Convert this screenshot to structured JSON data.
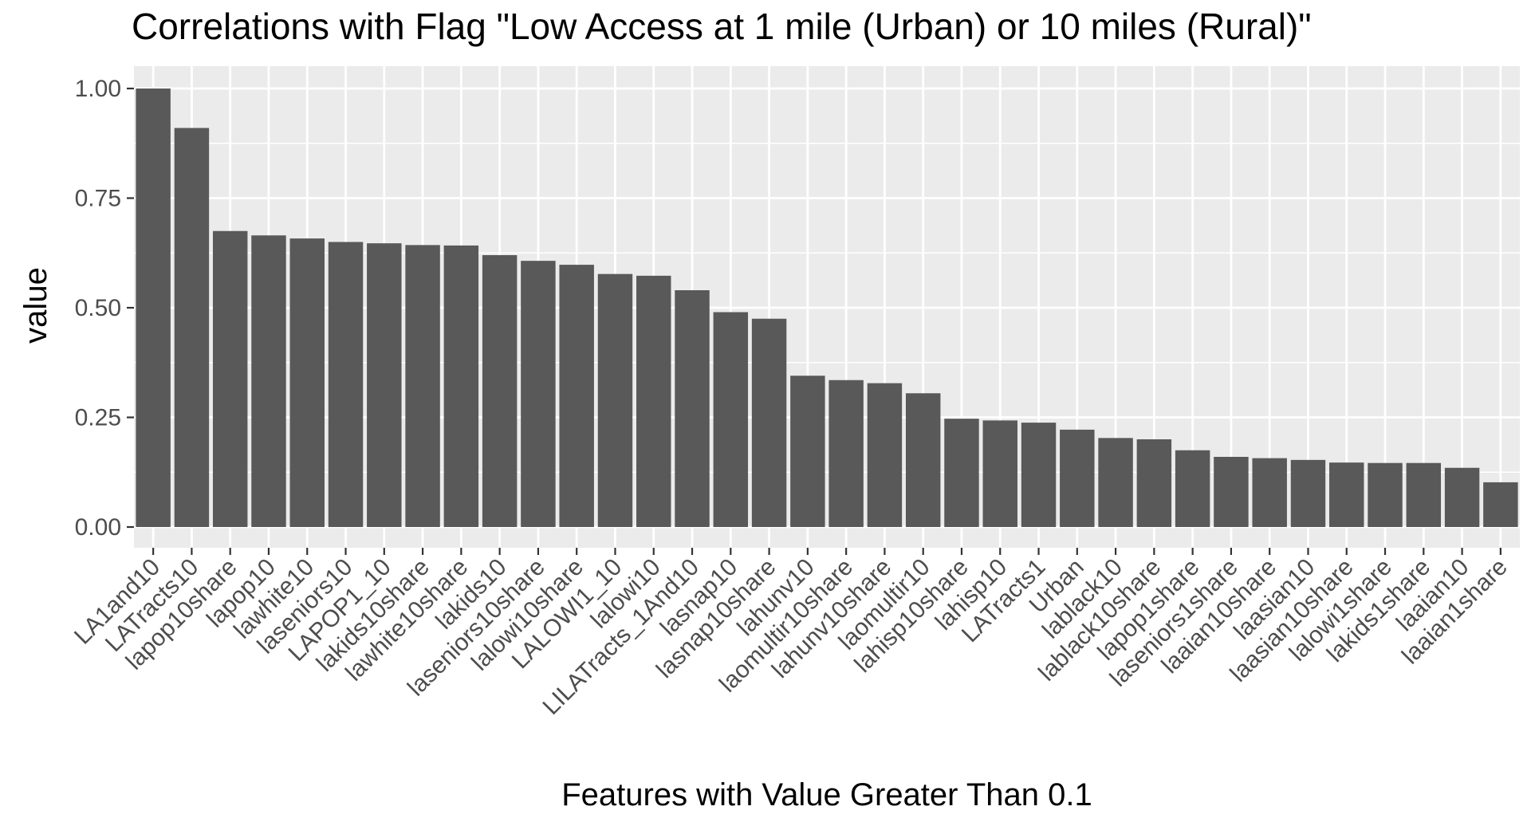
{
  "chart_data": {
    "type": "bar",
    "title": "Correlations with Flag \"Low Access at 1 mile (Urban) or 10 miles (Rural)\"",
    "xlabel": "Features with Value Greater Than 0.1",
    "ylabel": "value",
    "ylim": [
      0,
      1.03
    ],
    "yticks": [
      0.0,
      0.25,
      0.5,
      0.75,
      1.0
    ],
    "ytick_labels": [
      "0.00",
      "0.25",
      "0.50",
      "0.75",
      "1.00"
    ],
    "grid": true,
    "legend": "none",
    "categories": [
      "LA1and10",
      "LATracts10",
      "lapop10share",
      "lapop10",
      "lawhite10",
      "laseniors10",
      "LAPOP1_10",
      "lakids10share",
      "lawhite10share",
      "lakids10",
      "laseniors10share",
      "lalowi10share",
      "LALOWI1_10",
      "lalowi10",
      "LILATracts_1And10",
      "lasnap10",
      "lasnap10share",
      "lahunv10",
      "laomultir10share",
      "lahunv10share",
      "laomultir10",
      "lahisp10share",
      "lahisp10",
      "LATracts1",
      "Urban",
      "lablack10",
      "lablack10share",
      "lapop1share",
      "laseniors1share",
      "laaian10share",
      "laasian10",
      "laasian10share",
      "lalowi1share",
      "lakids1share",
      "laaian10",
      "laaian1share"
    ],
    "values": [
      1.0,
      0.91,
      0.675,
      0.665,
      0.658,
      0.65,
      0.647,
      0.643,
      0.642,
      0.62,
      0.607,
      0.598,
      0.577,
      0.573,
      0.54,
      0.49,
      0.475,
      0.345,
      0.335,
      0.328,
      0.305,
      0.247,
      0.243,
      0.238,
      0.222,
      0.203,
      0.2,
      0.175,
      0.16,
      0.157,
      0.153,
      0.147,
      0.146,
      0.146,
      0.135,
      0.102
    ],
    "colors": {
      "bar": "#595959",
      "panel_background": "#ebebeb",
      "grid": "#ffffff",
      "tick": "#333333",
      "tick_label": "#4d4d4d",
      "text": "#000000"
    }
  }
}
